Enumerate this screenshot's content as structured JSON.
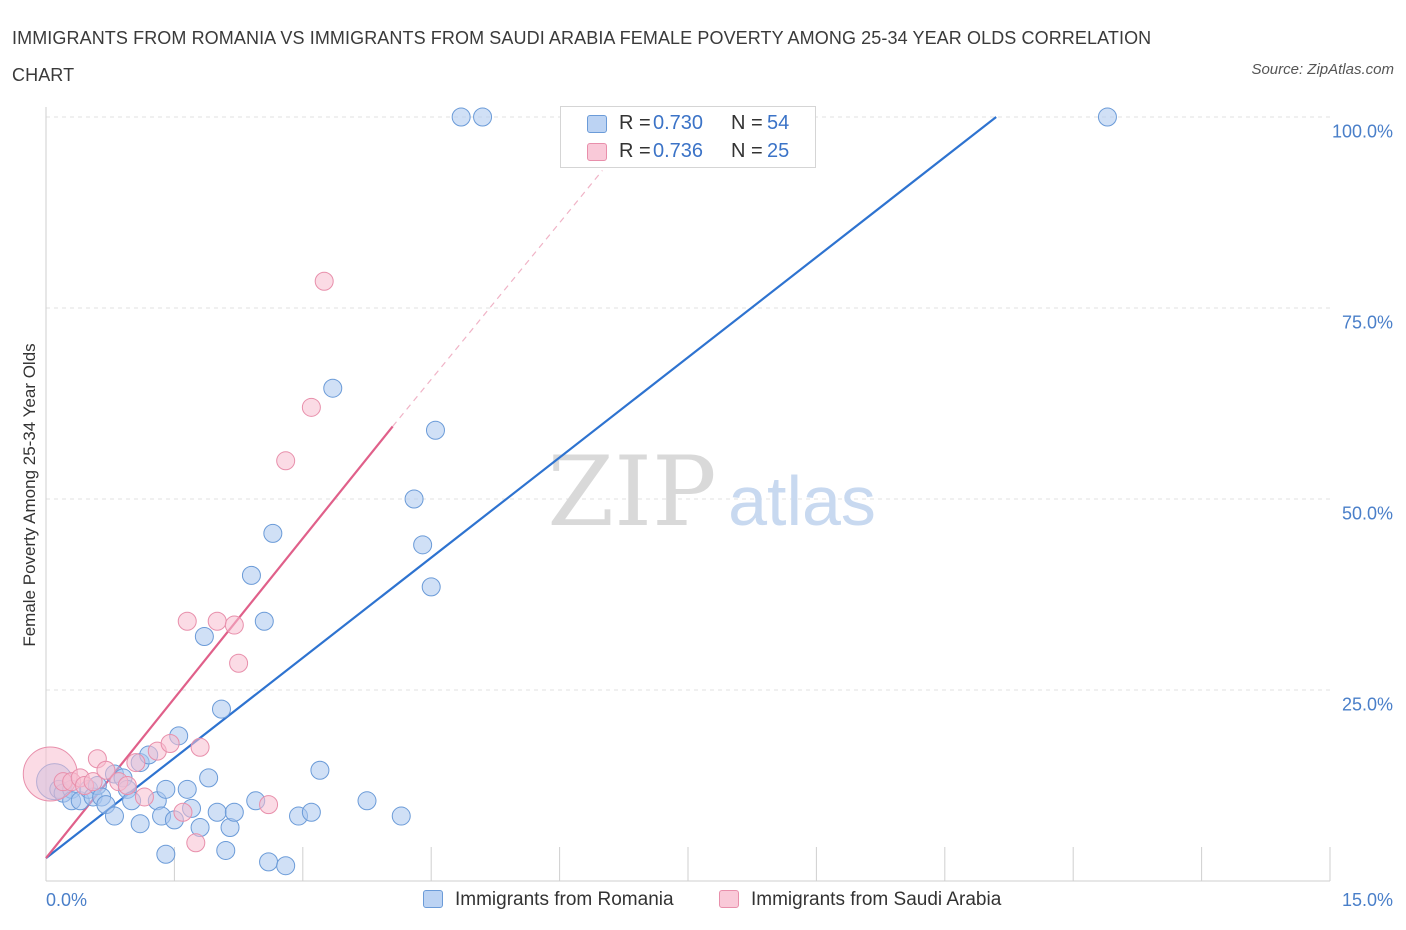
{
  "chart_data": {
    "type": "scatter",
    "title": "IMMIGRANTS FROM ROMANIA VS IMMIGRANTS FROM SAUDI ARABIA FEMALE POVERTY AMONG 25-34 YEAR OLDS CORRELATION CHART",
    "source": "Source: ZipAtlas.com",
    "xlabel": "",
    "ylabel": "Female Poverty Among 25-34 Year Olds",
    "xlim": [
      0,
      15
    ],
    "ylim": [
      0,
      100
    ],
    "x_tick_labels": [
      "0.0%",
      "15.0%"
    ],
    "y_ticks": [
      {
        "value": 25,
        "label": "25.0%"
      },
      {
        "value": 50,
        "label": "50.0%"
      },
      {
        "value": 75,
        "label": "75.0%"
      },
      {
        "value": 100,
        "label": "100.0%"
      }
    ],
    "watermark": {
      "zip": "ZIP",
      "atlas": "atlas"
    },
    "series": [
      {
        "name": "Immigrants from Romania",
        "color": "#a9c6ef",
        "stroke": "#6b9bd8",
        "line_color": "#2e73d0",
        "R": "0.730",
        "N": "54",
        "trend": {
          "x0": 0.0,
          "y0": 3.0,
          "x1": 11.1,
          "y1": 100.0
        },
        "points": [
          [
            0.1,
            13.0,
            2
          ],
          [
            0.15,
            12.0,
            1
          ],
          [
            0.2,
            11.5,
            1
          ],
          [
            0.3,
            12.0,
            1
          ],
          [
            0.3,
            10.5,
            1
          ],
          [
            0.4,
            10.5,
            1
          ],
          [
            0.5,
            12.0,
            1
          ],
          [
            0.55,
            11.0,
            1
          ],
          [
            0.6,
            12.5,
            1
          ],
          [
            0.65,
            11.0,
            1
          ],
          [
            0.7,
            10.0,
            1
          ],
          [
            0.8,
            8.5,
            1
          ],
          [
            0.8,
            14.0,
            1
          ],
          [
            0.9,
            13.5,
            1
          ],
          [
            0.95,
            12.0,
            1
          ],
          [
            1.0,
            10.5,
            1
          ],
          [
            1.1,
            15.5,
            1
          ],
          [
            1.1,
            7.5,
            1
          ],
          [
            1.2,
            16.5,
            1
          ],
          [
            1.3,
            10.5,
            1
          ],
          [
            1.35,
            8.5,
            1
          ],
          [
            1.4,
            12.0,
            1
          ],
          [
            1.4,
            3.5,
            1
          ],
          [
            1.5,
            8.0,
            1
          ],
          [
            1.55,
            19.0,
            1
          ],
          [
            1.65,
            12.0,
            1
          ],
          [
            1.7,
            9.5,
            1
          ],
          [
            1.8,
            7.0,
            1
          ],
          [
            1.85,
            32.0,
            1
          ],
          [
            1.9,
            13.5,
            1
          ],
          [
            2.0,
            9.0,
            1
          ],
          [
            2.05,
            22.5,
            1
          ],
          [
            2.1,
            4.0,
            1
          ],
          [
            2.15,
            7.0,
            1
          ],
          [
            2.2,
            9.0,
            1
          ],
          [
            2.4,
            40.0,
            1
          ],
          [
            2.45,
            10.5,
            1
          ],
          [
            2.55,
            34.0,
            1
          ],
          [
            2.6,
            2.5,
            1
          ],
          [
            2.65,
            45.5,
            1
          ],
          [
            2.8,
            2.0,
            1
          ],
          [
            2.95,
            8.5,
            1
          ],
          [
            3.1,
            9.0,
            1
          ],
          [
            3.2,
            14.5,
            1
          ],
          [
            3.35,
            64.5,
            1
          ],
          [
            3.75,
            10.5,
            1
          ],
          [
            4.15,
            8.5,
            1
          ],
          [
            4.3,
            50.0,
            1
          ],
          [
            4.4,
            44.0,
            1
          ],
          [
            4.5,
            38.5,
            1
          ],
          [
            4.55,
            59.0,
            1
          ],
          [
            4.85,
            100.0,
            1
          ],
          [
            5.1,
            100.0,
            1
          ],
          [
            12.4,
            100.0,
            1
          ]
        ]
      },
      {
        "name": "Immigrants from Saudi Arabia",
        "color": "#f7bdd0",
        "stroke": "#e88fab",
        "line_color": "#e0608a",
        "R": "0.736",
        "N": "25",
        "trend": {
          "x0": 0.0,
          "y0": 3.0,
          "x1": 4.05,
          "y1": 59.5
        },
        "trend_dashed": {
          "x0": 4.05,
          "y0": 59.5,
          "x1": 6.5,
          "y1": 93.0
        },
        "points": [
          [
            0.05,
            14.0,
            3
          ],
          [
            0.2,
            13.0,
            1
          ],
          [
            0.3,
            13.0,
            1
          ],
          [
            0.4,
            13.5,
            1
          ],
          [
            0.45,
            12.5,
            1
          ],
          [
            0.55,
            13.0,
            1
          ],
          [
            0.6,
            16.0,
            1
          ],
          [
            0.7,
            14.5,
            1
          ],
          [
            0.85,
            13.0,
            1
          ],
          [
            0.95,
            12.5,
            1
          ],
          [
            1.05,
            15.5,
            1
          ],
          [
            1.15,
            11.0,
            1
          ],
          [
            1.3,
            17.0,
            1
          ],
          [
            1.45,
            18.0,
            1
          ],
          [
            1.6,
            9.0,
            1
          ],
          [
            1.65,
            34.0,
            1
          ],
          [
            1.75,
            5.0,
            1
          ],
          [
            1.8,
            17.5,
            1
          ],
          [
            2.0,
            34.0,
            1
          ],
          [
            2.2,
            33.5,
            1
          ],
          [
            2.25,
            28.5,
            1
          ],
          [
            2.6,
            10.0,
            1
          ],
          [
            2.8,
            55.0,
            1
          ],
          [
            3.1,
            62.0,
            1
          ],
          [
            3.25,
            78.5,
            1
          ]
        ]
      }
    ]
  }
}
